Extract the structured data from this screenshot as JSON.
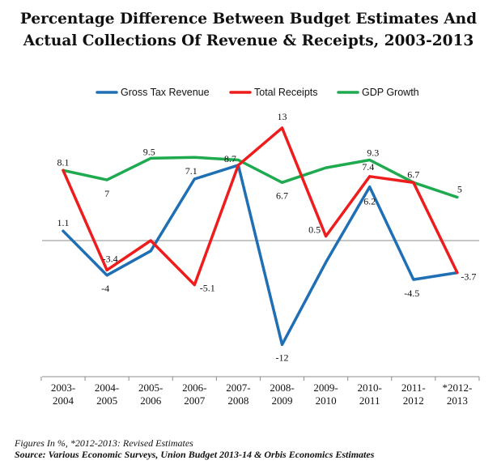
{
  "title_line1": "Percentage Difference Between Budget Estimates And",
  "title_line2": "Actual Collections Of Revenue & Receipts, 2003-2013",
  "footnote": "Figures In %, *2012-2013: Revised Estimates",
  "source": "Source: Various Economic Surveys, Union Budget 2013-14 & Orbis Economics Estimates",
  "colors": {
    "gross_tax_revenue": "#1f6fb5",
    "total_receipts": "#ee1c1c",
    "gdp_growth": "#1faa4f",
    "zero_line": "#8c8c8c"
  },
  "chart_data": {
    "type": "line",
    "title": "Percentage Difference Between Budget Estimates And Actual Collections Of Revenue & Receipts, 2003-2013",
    "categories": [
      [
        "2003-",
        "2004"
      ],
      [
        "2004-",
        "2005"
      ],
      [
        "2005-",
        "2006"
      ],
      [
        "2006-",
        "2007"
      ],
      [
        "2007-",
        "2008"
      ],
      [
        "2008-",
        "2009"
      ],
      [
        "2009-",
        "2010"
      ],
      [
        "2010-",
        "2011"
      ],
      [
        "2011-",
        "2012"
      ],
      [
        "*2012-",
        "2013"
      ]
    ],
    "ylim": [
      -14,
      15
    ],
    "legend_position": "top",
    "series": [
      {
        "name": "Gross Tax Revenue",
        "color": "#1f6fb5",
        "values": [
          1.1,
          -4,
          -1.2,
          7.1,
          8.7,
          -12,
          -2.5,
          6.2,
          -4.5,
          -3.7
        ],
        "labels": [
          "1.1",
          "-4",
          "",
          "7.1",
          "8.7",
          "-12",
          "",
          "6.2",
          "-4.5",
          ""
        ]
      },
      {
        "name": "Total Receipts",
        "color": "#ee1c1c",
        "values": [
          8.1,
          -3.4,
          0.0,
          -5.1,
          8.7,
          13,
          0.5,
          7.4,
          6.7,
          -3.7
        ],
        "labels": [
          "8.1",
          "-3.4",
          "",
          "-5.1",
          "",
          "13",
          "0.5",
          "7.4",
          "",
          "-3.7"
        ]
      },
      {
        "name": "GDP Growth",
        "color": "#1faa4f",
        "values": [
          8.1,
          7.0,
          9.5,
          9.6,
          9.3,
          6.7,
          8.4,
          9.3,
          6.7,
          5.0
        ],
        "labels": [
          "",
          "7",
          "9.5",
          "",
          "",
          "6.7",
          "",
          "9.3",
          "6.7",
          "5"
        ]
      }
    ]
  }
}
